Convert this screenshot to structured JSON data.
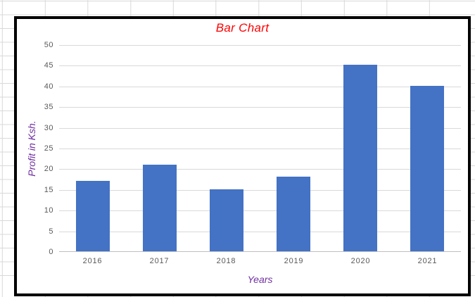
{
  "spreadsheet": {
    "background": "#FFFFFF",
    "gridline_color": "#D9D9D9"
  },
  "chart_object": {
    "background": "#FFFFFF",
    "border_color": "#000000"
  },
  "chart_data": {
    "type": "bar",
    "title": "Bar Chart",
    "categories": [
      "2016",
      "2017",
      "2018",
      "2019",
      "2020",
      "2021"
    ],
    "values": [
      17,
      21,
      15,
      18,
      45,
      40
    ],
    "xlabel": "Years",
    "ylabel": "Profit in Ksh.",
    "ylim": [
      0,
      50
    ],
    "yticks": [
      0,
      5,
      10,
      15,
      20,
      25,
      30,
      35,
      40,
      45,
      50
    ],
    "grid": true,
    "legend": "none",
    "bar_color": "#4472C4",
    "title_color": "#FF0000",
    "axis_title_color": "#7030A0",
    "tick_label_color": "#595959",
    "gridline_color": "#D9D9D9",
    "axis_line_color": "#BFBFBF"
  }
}
